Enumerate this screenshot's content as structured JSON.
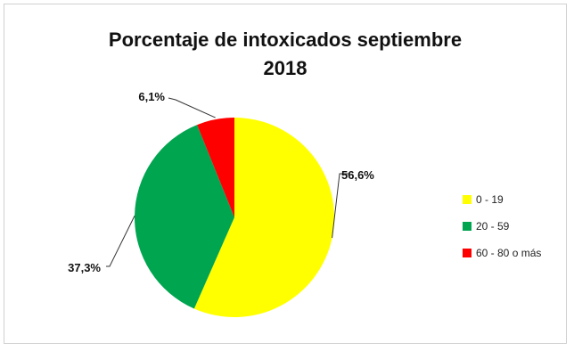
{
  "chart_data": {
    "type": "pie",
    "title": "Porcentaje de intoxicados  septiembre",
    "subtitle": "2018",
    "categories": [
      "0 - 19",
      "20 - 59",
      "60 - 80 o más"
    ],
    "values": [
      56.6,
      37.3,
      6.1
    ],
    "data_labels": [
      "56,6%",
      "37,3%",
      "6,1%"
    ],
    "colors": [
      "#FFFF00",
      "#00A550",
      "#FF0000"
    ],
    "legend_position": "right",
    "start_angle_deg": 0,
    "direction": "clockwise"
  }
}
